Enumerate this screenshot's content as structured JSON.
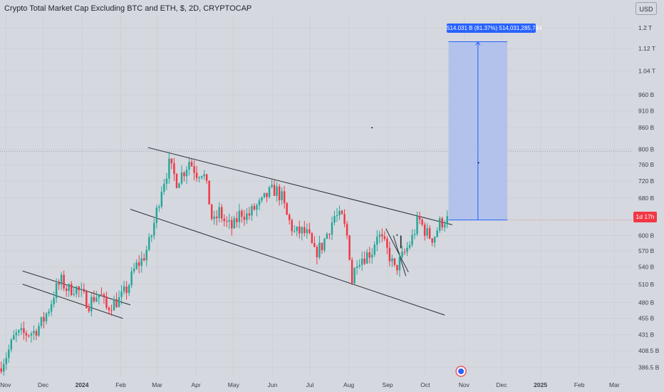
{
  "header": {
    "title": "Crypto Total Market Cap Excluding BTC and ETH, $, 2D, CRYPTOCAP",
    "currency_label": "USD"
  },
  "price_badge": {
    "label": "1d 17h",
    "color": "#f23645"
  },
  "measure_label": "514.031 B (81.37%) 514,031,285,744",
  "colors": {
    "up": "#26a69a",
    "down": "#f23645",
    "projection_fill": "#aec0ec",
    "projection_border": "#2962ff",
    "trendline": "#2a2e39",
    "background": "#d5d8de"
  },
  "chart_data": {
    "type": "candlestick",
    "scale": "log",
    "y_unit": "USD",
    "x_ticks": [
      "Nov",
      "Dec",
      "2024",
      "Feb",
      "Mar",
      "Apr",
      "May",
      "Jun",
      "Jul",
      "Aug",
      "Sep",
      "Oct",
      "Nov",
      "Dec",
      "2025",
      "Feb",
      "Mar"
    ],
    "y_ticks": [
      {
        "label": "1.2 T",
        "value": 1200
      },
      {
        "label": "1.12 T",
        "value": 1120
      },
      {
        "label": "1.04 T",
        "value": 1040
      },
      {
        "label": "960 B",
        "value": 960
      },
      {
        "label": "910 B",
        "value": 910
      },
      {
        "label": "860 B",
        "value": 860
      },
      {
        "label": "800 B",
        "value": 800
      },
      {
        "label": "760 B",
        "value": 760
      },
      {
        "label": "720 B",
        "value": 720
      },
      {
        "label": "680 B",
        "value": 680
      },
      {
        "label": "600 B",
        "value": 600
      },
      {
        "label": "570 B",
        "value": 570
      },
      {
        "label": "540 B",
        "value": 540
      },
      {
        "label": "510 B",
        "value": 510
      },
      {
        "label": "480 B",
        "value": 480
      },
      {
        "label": "455 B",
        "value": 455
      },
      {
        "label": "431 B",
        "value": 431
      },
      {
        "label": "408.5 B",
        "value": 408.5
      },
      {
        "label": "386.5 B",
        "value": 386.5
      }
    ],
    "y_range": [
      375,
      1250
    ],
    "x_range": [
      "2023-10-27",
      "2025-03-15"
    ],
    "price_path": [
      [
        "2023-10-28",
        385
      ],
      [
        "2023-11-04",
        405
      ],
      [
        "2023-11-10",
        430
      ],
      [
        "2023-11-18",
        432
      ],
      [
        "2023-11-25",
        435
      ],
      [
        "2023-12-02",
        450
      ],
      [
        "2023-12-08",
        475
      ],
      [
        "2023-12-12",
        500
      ],
      [
        "2023-12-17",
        515
      ],
      [
        "2023-12-22",
        500
      ],
      [
        "2023-12-28",
        505
      ],
      [
        "2024-01-03",
        490
      ],
      [
        "2024-01-08",
        478
      ],
      [
        "2024-01-12",
        488
      ],
      [
        "2024-01-17",
        495
      ],
      [
        "2024-01-22",
        470
      ],
      [
        "2024-01-26",
        478
      ],
      [
        "2024-02-02",
        485
      ],
      [
        "2024-02-08",
        505
      ],
      [
        "2024-02-14",
        540
      ],
      [
        "2024-02-20",
        555
      ],
      [
        "2024-02-26",
        590
      ],
      [
        "2024-03-02",
        650
      ],
      [
        "2024-03-06",
        705
      ],
      [
        "2024-03-12",
        760
      ],
      [
        "2024-03-18",
        720
      ],
      [
        "2024-03-24",
        745
      ],
      [
        "2024-03-28",
        770
      ],
      [
        "2024-04-03",
        740
      ],
      [
        "2024-04-08",
        745
      ],
      [
        "2024-04-12",
        690
      ],
      [
        "2024-04-16",
        620
      ],
      [
        "2024-04-21",
        650
      ],
      [
        "2024-04-26",
        625
      ],
      [
        "2024-05-02",
        615
      ],
      [
        "2024-05-08",
        650
      ],
      [
        "2024-05-14",
        640
      ],
      [
        "2024-05-20",
        660
      ],
      [
        "2024-05-24",
        665
      ],
      [
        "2024-05-30",
        690
      ],
      [
        "2024-06-05",
        700
      ],
      [
        "2024-06-10",
        680
      ],
      [
        "2024-06-14",
        640
      ],
      [
        "2024-06-20",
        605
      ],
      [
        "2024-06-26",
        608
      ],
      [
        "2024-07-01",
        600
      ],
      [
        "2024-07-06",
        565
      ],
      [
        "2024-07-12",
        580
      ],
      [
        "2024-07-17",
        610
      ],
      [
        "2024-07-22",
        640
      ],
      [
        "2024-07-28",
        635
      ],
      [
        "2024-08-02",
        590
      ],
      [
        "2024-08-05",
        515
      ],
      [
        "2024-08-09",
        555
      ],
      [
        "2024-08-15",
        560
      ],
      [
        "2024-08-21",
        570
      ],
      [
        "2024-08-25",
        605
      ],
      [
        "2024-08-30",
        585
      ],
      [
        "2024-09-04",
        560
      ],
      [
        "2024-09-08",
        535
      ],
      [
        "2024-09-12",
        550
      ],
      [
        "2024-09-17",
        570
      ],
      [
        "2024-09-22",
        595
      ],
      [
        "2024-09-27",
        635
      ],
      [
        "2024-10-01",
        615
      ],
      [
        "2024-10-05",
        600
      ],
      [
        "2024-10-09",
        595
      ],
      [
        "2024-10-14",
        625
      ],
      [
        "2024-10-18",
        632
      ]
    ],
    "current_value": 632,
    "projection": {
      "from_value": 632,
      "to_value": 1146,
      "change_abs": "514.031 B",
      "change_pct": 81.37,
      "start_date": "2024-10-19",
      "end_date": "2024-12-05"
    },
    "trendlines": [
      {
        "from": [
          "2024-02-22",
          805
        ],
        "to": [
          "2024-10-22",
          622
        ]
      },
      {
        "from": [
          "2024-02-08",
          655
        ],
        "to": [
          "2024-10-16",
          460
        ]
      },
      {
        "from": [
          "2023-11-14",
          533
        ],
        "to": [
          "2024-02-08",
          476
        ]
      },
      {
        "from": [
          "2023-11-14",
          510
        ],
        "to": [
          "2024-02-02",
          455
        ]
      },
      {
        "from": [
          "2024-08-30",
          614
        ],
        "to": [
          "2024-09-17",
          531
        ]
      },
      {
        "from": [
          "2024-09-05",
          600
        ],
        "to": [
          "2024-09-15",
          524
        ]
      }
    ]
  }
}
